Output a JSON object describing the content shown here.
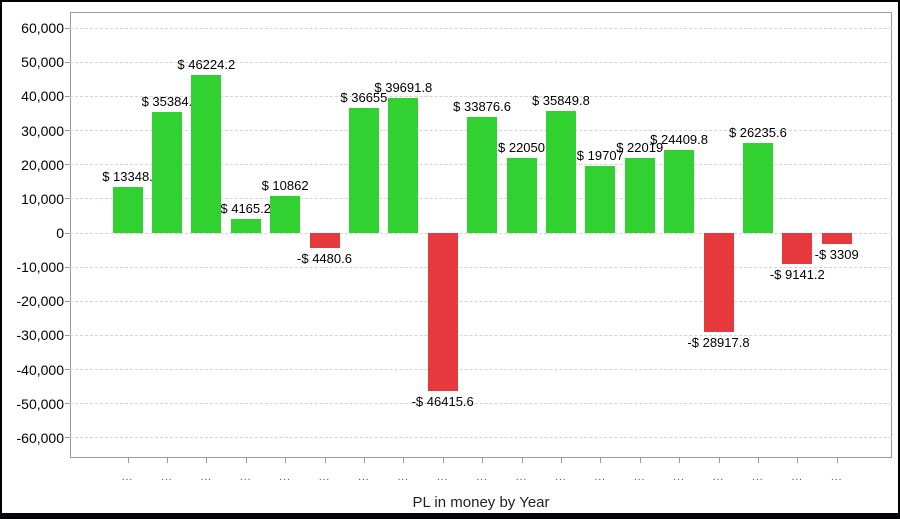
{
  "window": {
    "background": "#ffffff",
    "frame_border": "#000000",
    "bottom_edge": "#05050f"
  },
  "chart_data": {
    "type": "bar",
    "title": "PL in money by Year",
    "xlabel": "PL in money by Year",
    "ylabel": "",
    "legend": "none",
    "grid": "horizontal-dashed",
    "ylim": [
      -65000,
      65000
    ],
    "categories": [
      "...",
      "...",
      "...",
      "...",
      "...",
      "...",
      "...",
      "...",
      "...",
      "...",
      "...",
      "...",
      "...",
      "...",
      "...",
      "...",
      "...",
      "...",
      "..."
    ],
    "values": [
      13348,
      35384,
      46224.2,
      4165.2,
      10862,
      -4480.6,
      36655,
      39691.8,
      -46415.6,
      33876.6,
      22050,
      35849.8,
      19707,
      22019,
      24409.8,
      -28917.8,
      26235.6,
      -9141.2,
      -3309
    ],
    "bar_labels": [
      "$ 13348.",
      "$ 35384.",
      "$ 46224.2",
      "$ 4165.2",
      "$ 10862",
      "-$ 4480.6",
      "$ 36655",
      "$ 39691.8",
      "-$ 46415.6",
      "$ 33876.6",
      "$ 22050",
      "$ 35849.8",
      "$ 19707",
      "$ 22019",
      "$ 24409.8",
      "-$ 28917.8",
      "$ 26235.6",
      "-$ 9141.2",
      "-$ 3309"
    ],
    "y_ticks": [
      {
        "value": 60000,
        "label": "60,000"
      },
      {
        "value": 50000,
        "label": "50,000"
      },
      {
        "value": 40000,
        "label": "40,000"
      },
      {
        "value": 30000,
        "label": "30,000"
      },
      {
        "value": 20000,
        "label": "20,000"
      },
      {
        "value": 10000,
        "label": "10,000"
      },
      {
        "value": 0,
        "label": "0"
      },
      {
        "value": -10000,
        "label": "-10,000"
      },
      {
        "value": -20000,
        "label": "-20,000"
      },
      {
        "value": -30000,
        "label": "-30,000"
      },
      {
        "value": -40000,
        "label": "-40,000"
      },
      {
        "value": -50000,
        "label": "-50,000"
      },
      {
        "value": -60000,
        "label": "-60,000"
      }
    ],
    "colors": {
      "positive": "#31d131",
      "negative": "#e6393d",
      "grid": "#d4d4d4",
      "axis": "#9a9a9a",
      "label_text": "#000000",
      "title_text": "#222222",
      "x_tick_text": "#444444"
    }
  }
}
